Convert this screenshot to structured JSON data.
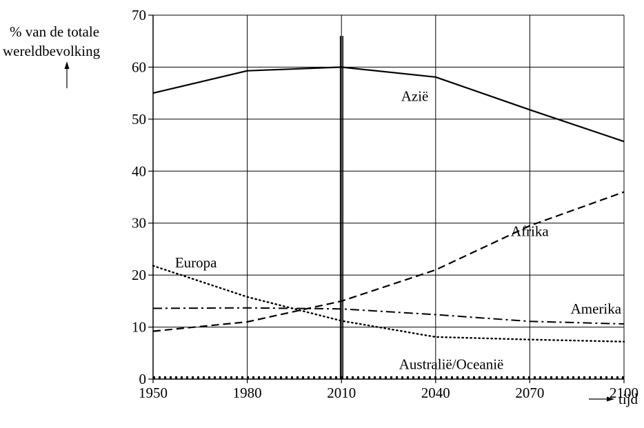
{
  "chart_data": {
    "type": "line",
    "title": "",
    "ylabel_line1": "% van de totale",
    "ylabel_line2": "wereldbevolking",
    "xlabel": "tijd",
    "x": [
      1950,
      1980,
      2010,
      2040,
      2070,
      2100
    ],
    "xlim": [
      1950,
      2100
    ],
    "ylim": [
      0,
      70
    ],
    "xticks": [
      "1950",
      "1980",
      "2010",
      "2040",
      "2070",
      "2100"
    ],
    "yticks": [
      "0",
      "10",
      "20",
      "30",
      "40",
      "50",
      "60",
      "70"
    ],
    "grid": true,
    "vertical_marker_x": 2010,
    "series": [
      {
        "name": "Azië",
        "style": "solid",
        "x": [
          1950,
          1980,
          2010,
          2040,
          2070,
          2100
        ],
        "values": [
          55,
          59.3,
          60,
          58.1,
          51.8,
          45.7
        ]
      },
      {
        "name": "Afrika",
        "style": "dashed",
        "x": [
          1950,
          1980,
          2010,
          2040,
          2070,
          2100
        ],
        "values": [
          9.2,
          11,
          15,
          21,
          29.5,
          36
        ]
      },
      {
        "name": "Europa",
        "style": "dotted",
        "x": [
          1950,
          1980,
          2010,
          2040,
          2070,
          2100
        ],
        "values": [
          21.8,
          15.8,
          11.2,
          8.1,
          7.6,
          7.2
        ]
      },
      {
        "name": "Amerika",
        "style": "dashdot",
        "x": [
          1950,
          1980,
          2010,
          2040,
          2070,
          2100
        ],
        "values": [
          13.6,
          13.7,
          13.5,
          12.4,
          11.1,
          10.6
        ]
      },
      {
        "name": "Australië/Oceanië",
        "style": "dotted-thick",
        "x": [
          1950,
          1980,
          2010,
          2040,
          2070,
          2100
        ],
        "values": [
          0.3,
          0.3,
          0.3,
          0.3,
          0.3,
          0.3
        ]
      }
    ],
    "colors": {
      "line": "#000000",
      "grid": "#000000",
      "background": "#ffffff"
    }
  }
}
